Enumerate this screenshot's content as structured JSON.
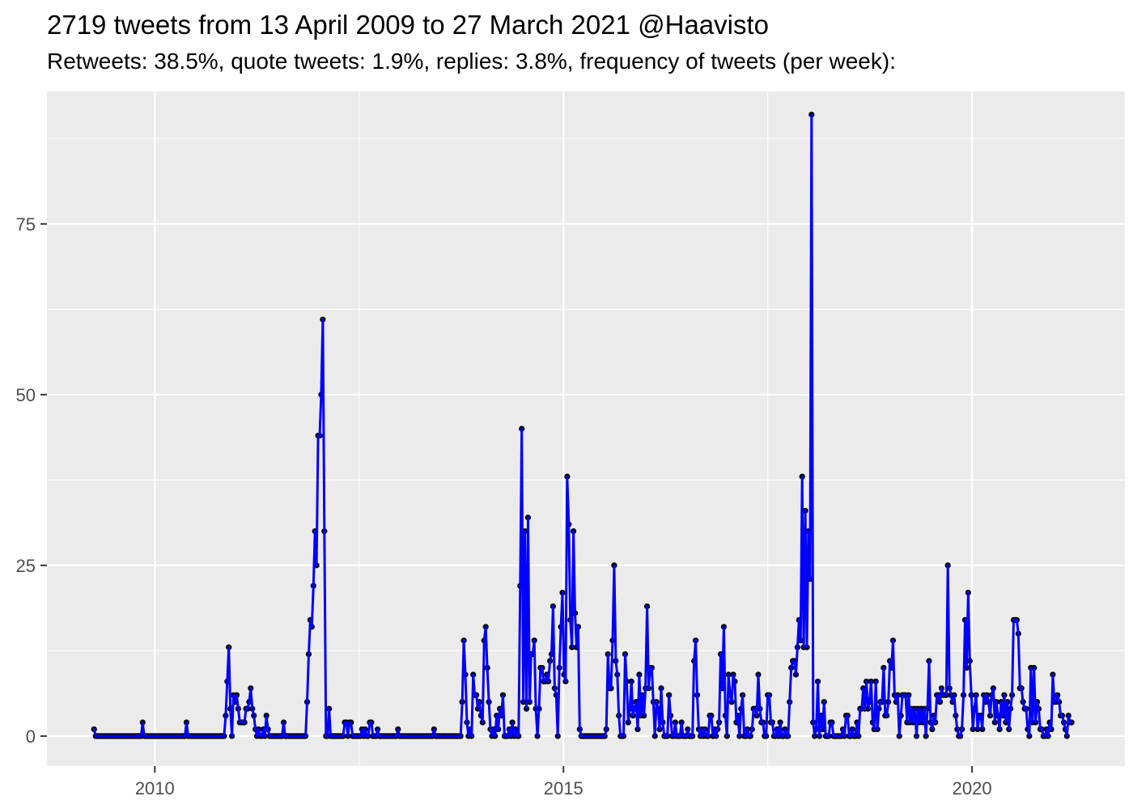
{
  "header": {
    "title": "2719 tweets from 13 April 2009 to 27 March 2021 @Haavisto",
    "subtitle": "Retweets: 38.5%, quote tweets: 1.9%, replies: 3.8%, frequency of tweets (per week):"
  },
  "chart_data": {
    "type": "line",
    "title": "2719 tweets from 13 April 2009 to 27 March 2021 @Haavisto",
    "subtitle": "Retweets: 38.5%, quote tweets: 1.9%, replies: 3.8%, frequency of tweets (per week):",
    "xlabel": "",
    "ylabel": "",
    "legend": "none",
    "grid": "on",
    "x_axis": {
      "range": [
        2008.68,
        2021.87
      ],
      "major_ticks": [
        2010,
        2015,
        2020
      ],
      "major_tick_labels": [
        "2010",
        "2015",
        "2020"
      ],
      "minor_ticks": [
        2012.5,
        2017.5
      ]
    },
    "y_axis": {
      "range": [
        -4.4,
        94.4
      ],
      "major_ticks": [
        0,
        25,
        50,
        75
      ],
      "major_tick_labels": [
        "0",
        "25",
        "50",
        "75"
      ],
      "minor_ticks": [
        12.5,
        37.5,
        62.5,
        87.5
      ]
    },
    "series": [
      {
        "name": "tweets-per-week",
        "x_start": 2009.257,
        "x_step": 0.019168,
        "values": [
          1,
          0,
          0,
          0,
          0,
          0,
          0,
          0,
          0,
          0,
          0,
          0,
          0,
          0,
          0,
          0,
          0,
          0,
          0,
          0,
          0,
          0,
          0,
          0,
          0,
          0,
          0,
          0,
          0,
          0,
          0,
          2,
          0,
          0,
          0,
          0,
          0,
          0,
          0,
          0,
          0,
          0,
          0,
          0,
          0,
          0,
          0,
          0,
          0,
          0,
          0,
          0,
          0,
          0,
          0,
          0,
          0,
          0,
          0,
          2,
          0,
          0,
          0,
          0,
          0,
          0,
          0,
          0,
          0,
          0,
          0,
          0,
          0,
          0,
          0,
          0,
          0,
          0,
          0,
          0,
          0,
          0,
          0,
          0,
          3,
          8,
          13,
          4,
          0,
          6,
          5,
          6,
          4,
          2,
          2,
          2,
          2,
          4,
          4,
          5,
          7,
          4,
          3,
          1,
          0,
          1,
          0,
          0,
          1,
          0,
          3,
          1,
          0,
          0,
          0,
          0,
          0,
          0,
          0,
          0,
          0,
          2,
          0,
          0,
          0,
          0,
          0,
          0,
          0,
          0,
          0,
          0,
          0,
          0,
          0,
          0,
          5,
          12,
          17,
          16,
          22,
          30,
          25,
          44,
          44,
          50,
          61,
          30,
          0,
          0,
          4,
          0,
          0,
          0,
          0,
          0,
          0,
          0,
          0,
          0,
          2,
          2,
          0,
          2,
          2,
          0,
          0,
          0,
          0,
          0,
          0,
          1,
          0,
          1,
          0,
          0,
          2,
          2,
          0,
          0,
          0,
          1,
          0,
          0,
          0,
          0,
          0,
          0,
          0,
          0,
          0,
          0,
          0,
          0,
          1,
          0,
          0,
          0,
          0,
          0,
          0,
          0,
          0,
          0,
          0,
          0,
          0,
          0,
          0,
          0,
          0,
          0,
          0,
          0,
          0,
          0,
          0,
          1,
          0,
          0,
          0,
          0,
          0,
          0,
          0,
          0,
          0,
          0,
          0,
          0,
          0,
          0,
          0,
          0,
          0,
          5,
          14,
          9,
          2,
          0,
          1,
          0,
          9,
          6,
          6,
          4,
          5,
          3,
          2,
          14,
          16,
          10,
          5,
          1,
          0,
          1,
          0,
          3,
          1,
          4,
          3,
          6,
          0,
          0,
          0,
          1,
          0,
          2,
          0,
          1,
          0,
          0,
          22,
          45,
          5,
          30,
          4,
          32,
          5,
          12,
          12,
          14,
          4,
          0,
          4,
          10,
          10,
          8,
          8,
          9,
          8,
          11,
          12,
          19,
          7,
          6,
          0,
          10,
          16,
          21,
          9,
          8,
          38,
          31,
          17,
          13,
          30,
          18,
          13,
          16,
          1,
          0,
          0,
          0,
          0,
          0,
          0,
          0,
          0,
          0,
          0,
          0,
          0,
          0,
          0,
          0,
          0,
          1,
          12,
          7,
          7,
          14,
          25,
          11,
          9,
          3,
          0,
          0,
          0,
          12,
          8,
          2,
          4,
          8,
          3,
          4,
          5,
          1,
          9,
          3,
          6,
          3,
          7,
          19,
          7,
          10,
          10,
          5,
          0,
          5,
          4,
          1,
          7,
          2,
          0,
          0,
          0,
          6,
          3,
          0,
          0,
          2,
          0,
          0,
          0,
          2,
          0,
          0,
          0,
          1,
          0,
          0,
          0,
          11,
          14,
          6,
          1,
          0,
          1,
          0,
          1,
          0,
          0,
          3,
          3,
          0,
          1,
          0,
          1,
          2,
          12,
          7,
          16,
          3,
          0,
          9,
          6,
          5,
          9,
          8,
          2,
          3,
          0,
          4,
          6,
          0,
          0,
          1,
          0,
          0,
          1,
          4,
          4,
          3,
          9,
          4,
          2,
          2,
          0,
          0,
          6,
          6,
          2,
          2,
          0,
          0,
          1,
          0,
          2,
          0,
          0,
          1,
          0,
          0,
          5,
          10,
          11,
          11,
          9,
          13,
          17,
          14,
          38,
          13,
          33,
          13,
          30,
          23,
          91,
          2,
          0,
          1,
          8,
          0,
          3,
          1,
          5,
          0,
          0,
          0,
          2,
          2,
          0,
          0,
          0,
          0,
          0,
          0,
          1,
          0,
          3,
          3,
          0,
          0,
          1,
          0,
          0,
          2,
          0,
          4,
          4,
          7,
          4,
          8,
          4,
          5,
          8,
          2,
          1,
          8,
          1,
          4,
          5,
          5,
          10,
          3,
          3,
          5,
          11,
          10,
          14,
          6,
          5,
          6,
          0,
          3,
          6,
          6,
          6,
          2,
          6,
          2,
          4,
          2,
          4,
          0,
          4,
          2,
          4,
          2,
          4,
          0,
          4,
          11,
          2,
          1,
          3,
          2,
          6,
          6,
          5,
          7,
          6,
          6,
          6,
          25,
          7,
          6,
          5,
          6,
          3,
          1,
          0,
          0,
          1,
          6,
          17,
          10,
          21,
          11,
          6,
          1,
          4,
          6,
          1,
          3,
          3,
          1,
          6,
          5,
          6,
          5,
          3,
          6,
          7,
          2,
          5,
          3,
          1,
          5,
          3,
          6,
          2,
          5,
          1,
          4,
          6,
          17,
          17,
          17,
          15,
          7,
          7,
          5,
          4,
          4,
          1,
          0,
          10,
          2,
          10,
          2,
          5,
          4,
          1,
          1,
          0,
          0,
          1,
          0,
          2,
          1,
          9,
          5,
          5,
          6,
          5,
          3,
          3,
          2,
          1,
          0,
          3,
          2,
          2
        ]
      }
    ],
    "styles": {
      "line_color": "#0000ff",
      "point_color": "#000000",
      "panel_background": "#ebebeb",
      "grid_color": "#ffffff",
      "axis_text_color": "#4d4d4d",
      "tick_mark_color": "#333333",
      "title_color": "#000000"
    }
  }
}
